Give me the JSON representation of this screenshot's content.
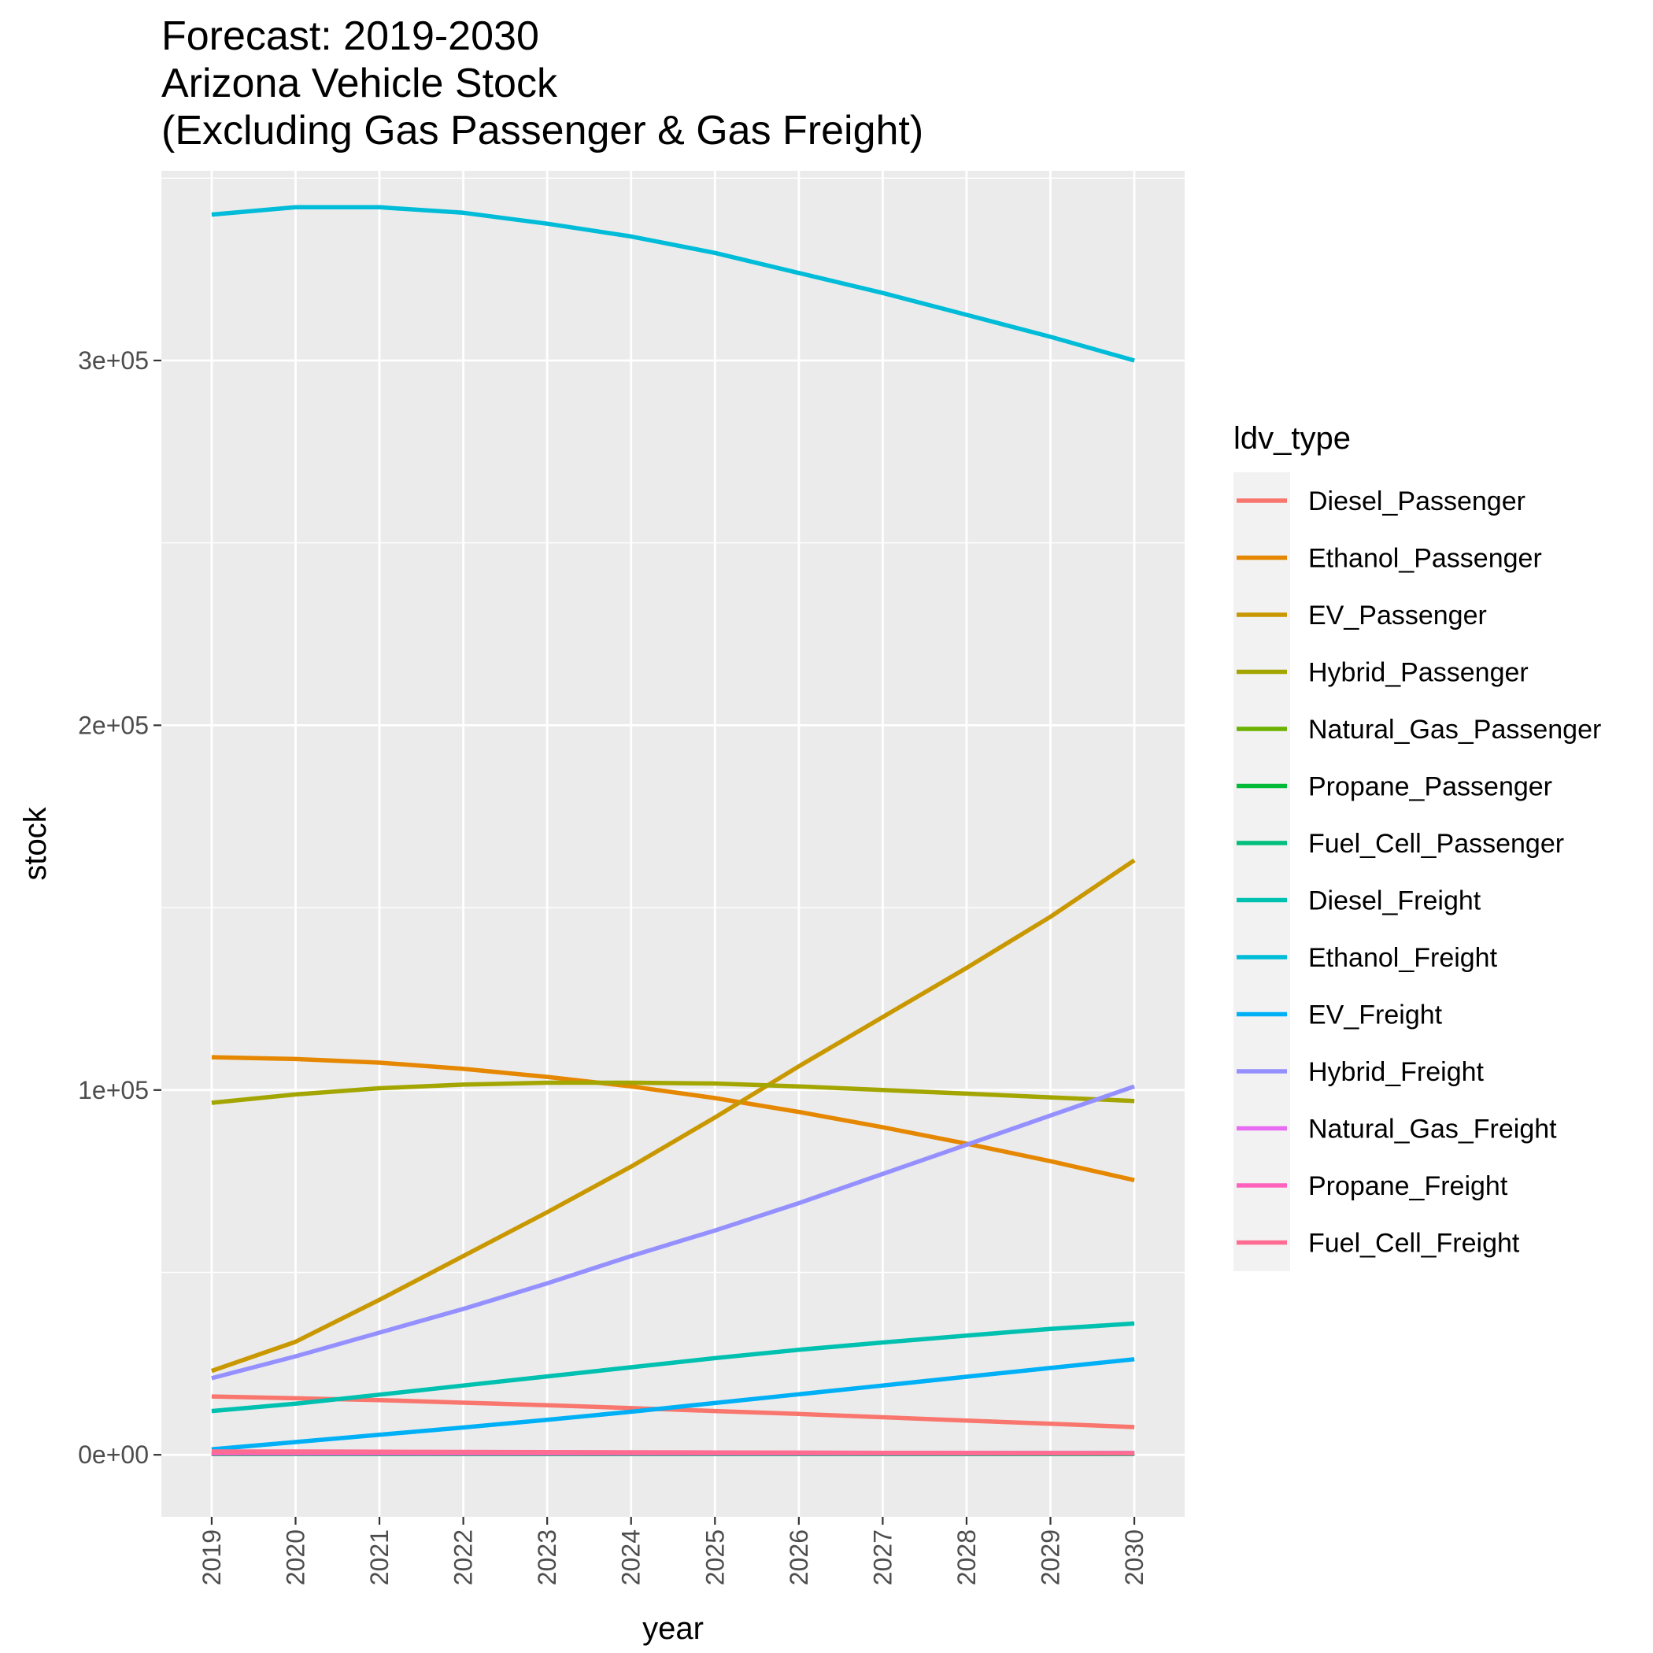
{
  "chart_data": {
    "type": "line",
    "title_lines": [
      "Forecast: 2019-2030",
      "Arizona Vehicle Stock",
      "(Excluding Gas Passenger & Gas Freight)"
    ],
    "xlabel": "year",
    "ylabel": "stock",
    "x": [
      2019,
      2020,
      2021,
      2022,
      2023,
      2024,
      2025,
      2026,
      2027,
      2028,
      2029,
      2030
    ],
    "xlim": [
      2018.4,
      2030.6
    ],
    "ylim": [
      -17000,
      352000
    ],
    "y_ticks": [
      0,
      100000,
      200000,
      300000
    ],
    "y_tick_labels": [
      "0e+00",
      "1e+05",
      "2e+05",
      "3e+05"
    ],
    "grid": true,
    "legend": {
      "title": "ldv_type",
      "position": "right"
    },
    "series": [
      {
        "name": "Diesel_Passenger",
        "color": "#F8766D",
        "values": [
          16000,
          15500,
          15000,
          14300,
          13600,
          12800,
          12000,
          11200,
          10300,
          9400,
          8500,
          7600
        ]
      },
      {
        "name": "Ethanol_Passenger",
        "color": "#E58700",
        "values": [
          109000,
          108500,
          107500,
          105800,
          103600,
          101000,
          97800,
          94000,
          89800,
          85300,
          80500,
          75300
        ]
      },
      {
        "name": "EV_Passenger",
        "color": "#C99800",
        "values": [
          23000,
          31000,
          42500,
          54500,
          66500,
          79000,
          92500,
          106500,
          120000,
          133500,
          147500,
          163000
        ]
      },
      {
        "name": "Hybrid_Passenger",
        "color": "#A3A500",
        "values": [
          96500,
          98800,
          100500,
          101500,
          102000,
          102000,
          101800,
          101000,
          100000,
          99000,
          98000,
          97000
        ]
      },
      {
        "name": "Natural_Gas_Passenger",
        "color": "#6BB100",
        "values": [
          500,
          500,
          500,
          500,
          500,
          500,
          500,
          500,
          500,
          500,
          500,
          500
        ]
      },
      {
        "name": "Propane_Passenger",
        "color": "#00BA38",
        "values": [
          300,
          300,
          300,
          300,
          300,
          300,
          300,
          300,
          300,
          300,
          300,
          300
        ]
      },
      {
        "name": "Fuel_Cell_Passenger",
        "color": "#00BF7D",
        "values": [
          200,
          200,
          200,
          200,
          200,
          200,
          200,
          200,
          200,
          200,
          200,
          200
        ]
      },
      {
        "name": "Diesel_Freight",
        "color": "#00C0AF",
        "values": [
          12000,
          14000,
          16500,
          19000,
          21500,
          24000,
          26500,
          28800,
          30800,
          32700,
          34500,
          36000
        ]
      },
      {
        "name": "Ethanol_Freight",
        "color": "#00BCD8",
        "values": [
          340000,
          342000,
          342000,
          340500,
          337500,
          334000,
          329500,
          324000,
          318500,
          312500,
          306500,
          300000
        ]
      },
      {
        "name": "EV_Freight",
        "color": "#00B0F6",
        "values": [
          1500,
          3500,
          5500,
          7500,
          9600,
          11800,
          14200,
          16600,
          19000,
          21400,
          23800,
          26200
        ]
      },
      {
        "name": "Hybrid_Freight",
        "color": "#9590FF",
        "values": [
          21000,
          27000,
          33500,
          40000,
          47000,
          54500,
          61500,
          69000,
          77000,
          85000,
          93000,
          101000
        ]
      },
      {
        "name": "Natural_Gas_Freight",
        "color": "#E76BF3",
        "values": [
          500,
          500,
          500,
          500,
          500,
          500,
          500,
          500,
          500,
          500,
          500,
          500
        ]
      },
      {
        "name": "Propane_Freight",
        "color": "#FF62BC",
        "values": [
          400,
          400,
          400,
          400,
          400,
          400,
          400,
          400,
          400,
          400,
          400,
          400
        ]
      },
      {
        "name": "Fuel_Cell_Freight",
        "color": "#FF6C91",
        "values": [
          900,
          900,
          850,
          800,
          750,
          700,
          650,
          600,
          550,
          500,
          450,
          400
        ]
      }
    ]
  }
}
